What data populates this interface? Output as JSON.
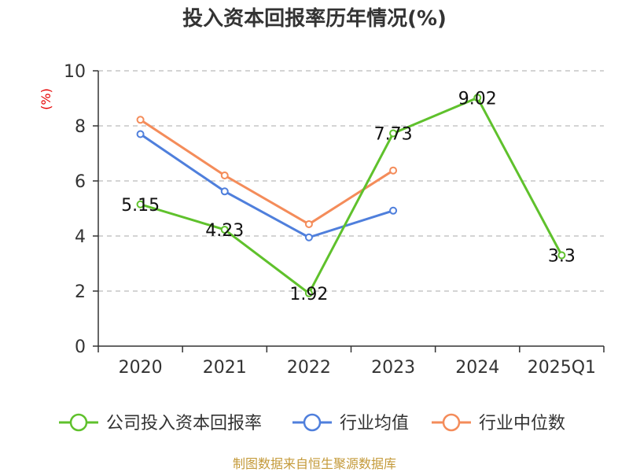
{
  "chart_data": {
    "type": "line",
    "title": "投入资本回报率历年情况(%)",
    "ylabel": "(%)",
    "categories": [
      "2020",
      "2021",
      "2022",
      "2023",
      "2024",
      "2025Q1"
    ],
    "ylim": [
      0,
      10
    ],
    "yticks": [
      0,
      2,
      4,
      6,
      8,
      10
    ],
    "grid": true,
    "legend_position": "bottom",
    "series": [
      {
        "name": "公司投入资本回报率",
        "color": "#5fc12c",
        "values": [
          5.15,
          4.23,
          1.92,
          7.73,
          9.02,
          3.3
        ],
        "labels": [
          "5.15",
          "4.23",
          "1.92",
          "7.73",
          "9.02",
          "3.3"
        ]
      },
      {
        "name": "行业均值",
        "color": "#4f7fdc",
        "values": [
          7.7,
          5.62,
          3.95,
          4.92,
          null,
          null
        ]
      },
      {
        "name": "行业中位数",
        "color": "#f48c5a",
        "values": [
          8.22,
          6.2,
          4.43,
          6.38,
          null,
          null
        ]
      }
    ],
    "source": "制图数据来自恒生聚源数据库"
  }
}
